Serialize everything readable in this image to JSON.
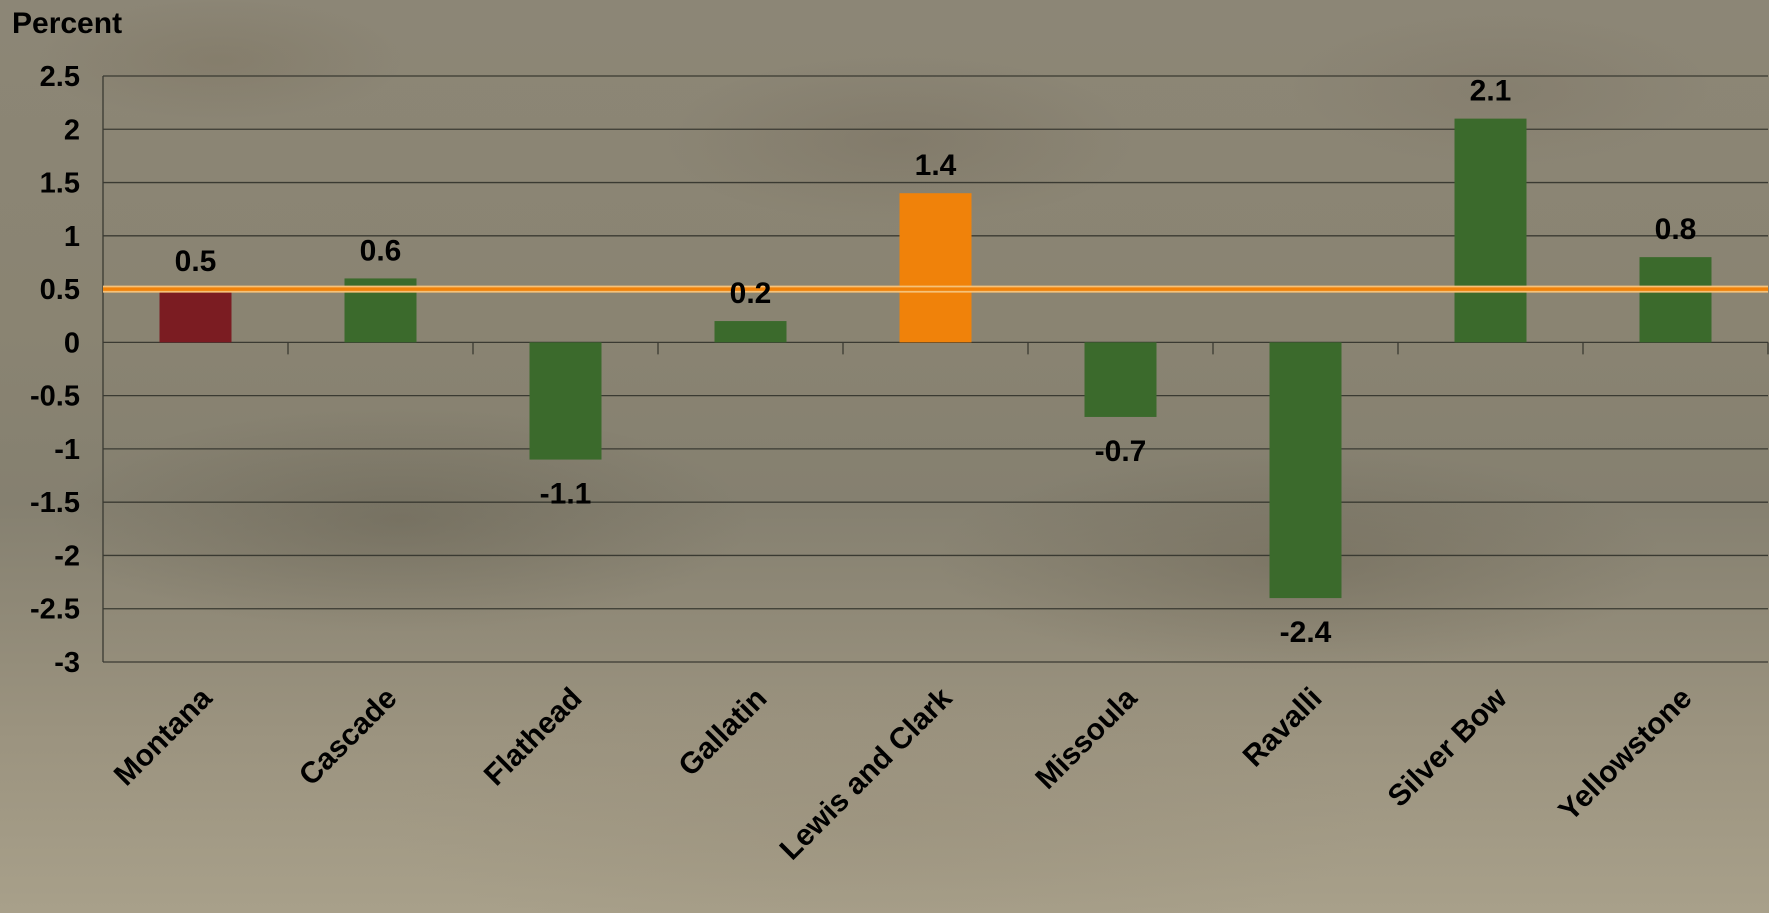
{
  "chart_data": {
    "type": "bar",
    "ylabel": "Percent",
    "ylim": [
      -3,
      2.5
    ],
    "yticks": [
      "2.5",
      "2",
      "1.5",
      "1",
      "0.5",
      "0",
      "-0.5",
      "-1",
      "-1.5",
      "-2",
      "-2.5",
      "-3"
    ],
    "categories": [
      "Montana",
      "Cascade",
      "Flathead",
      "Gallatin",
      "Lewis and Clark",
      "Missoula",
      "Ravalli",
      "Silver Bow",
      "Yellowstone"
    ],
    "values": [
      0.5,
      0.6,
      -1.1,
      0.2,
      1.4,
      -0.7,
      -2.4,
      2.1,
      0.8
    ],
    "data_labels": [
      "0.5",
      "0.6",
      "-1.1",
      "0.2",
      "1.4",
      "-0.7",
      "-2.4",
      "2.1",
      "0.8"
    ],
    "bar_colors": [
      "#7b1c22",
      "#3b6a2c",
      "#3b6a2c",
      "#3b6a2c",
      "#f0820a",
      "#3b6a2c",
      "#3b6a2c",
      "#3b6a2c",
      "#3b6a2c"
    ],
    "reference_line": {
      "value": 0.5,
      "color": "#f0820a"
    },
    "grid": true,
    "legend": "none"
  }
}
